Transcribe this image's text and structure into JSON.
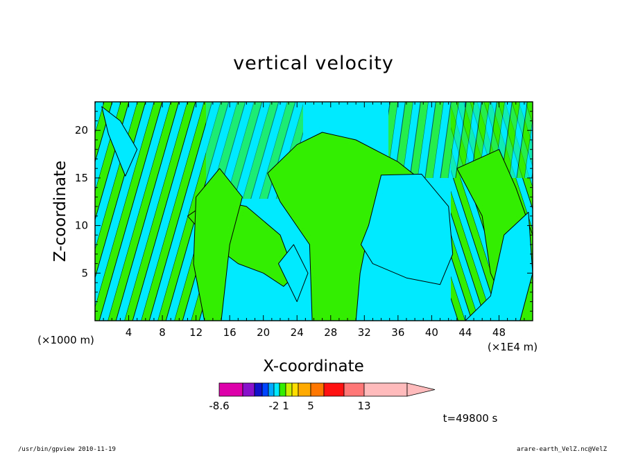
{
  "window": {
    "footer_left": "/usr/bin/gpview   2010-11-19",
    "footer_right": "arare-earth_VelZ.nc@VelZ"
  },
  "colors": {
    "cyan": "#00eaff",
    "green": "#33ee00",
    "frame": "#000000"
  },
  "chart_data": {
    "type": "heatmap",
    "title": "vertical velocity",
    "xlabel": "X-coordinate",
    "ylabel": "Z-coordinate",
    "x_unit_left": "(×1000 m)",
    "x_unit_right": "(×1E4 m)",
    "xlim": [
      0,
      52
    ],
    "ylim": [
      0,
      23
    ],
    "x_ticks": [
      4,
      8,
      12,
      16,
      20,
      24,
      28,
      32,
      36,
      40,
      44,
      48
    ],
    "y_ticks": [
      5,
      10,
      15,
      20
    ],
    "time_label": "t=49800 s",
    "colorbar": {
      "colors": [
        "#dd00aa",
        "#8811cc",
        "#1111cc",
        "#0044ff",
        "#00aaff",
        "#00eaff",
        "#33ee00",
        "#ccee00",
        "#ffdd00",
        "#ffaa00",
        "#ff7700",
        "#ff1111",
        "#ff7777",
        "#ffbbbb"
      ],
      "tick_labels": [
        {
          "label": "-8.6",
          "index": 0
        },
        {
          "label": "-2",
          "index": 5
        },
        {
          "label": "1",
          "index": 7
        },
        {
          "label": "5",
          "index": 10
        },
        {
          "label": "13",
          "index": 13
        }
      ]
    },
    "regions": [
      {
        "value_sign": "negative",
        "color": "cyan",
        "shape": [
          [
            0.8,
            22.5
          ],
          [
            3,
            21
          ],
          [
            5,
            18
          ],
          [
            3.6,
            15.2
          ],
          [
            1.6,
            19.6
          ]
        ]
      },
      {
        "value_sign": "positive",
        "color": "green",
        "shape": [
          [
            25.8,
            0
          ],
          [
            25.5,
            8
          ],
          [
            22,
            12.5
          ],
          [
            20.5,
            15.5
          ],
          [
            24,
            18.5
          ],
          [
            27,
            19.8
          ],
          [
            31,
            19
          ],
          [
            36,
            16.7
          ],
          [
            38,
            15.3
          ],
          [
            36,
            13.4
          ],
          [
            34,
            11.3
          ],
          [
            32.4,
            9
          ],
          [
            31.5,
            5
          ],
          [
            31,
            0
          ]
        ]
      },
      {
        "value_sign": "negative",
        "color": "cyan",
        "shape": [
          [
            32.5,
            10
          ],
          [
            34,
            15.3
          ],
          [
            38.8,
            15.4
          ],
          [
            42,
            12
          ],
          [
            42.5,
            7
          ],
          [
            41,
            3.8
          ],
          [
            37,
            4.5
          ],
          [
            33,
            6
          ],
          [
            31.6,
            8
          ]
        ]
      },
      {
        "value_sign": "positive",
        "color": "green",
        "shape": [
          [
            11,
            11
          ],
          [
            14,
            8
          ],
          [
            17,
            6
          ],
          [
            20,
            5
          ],
          [
            22.4,
            3.6
          ],
          [
            23.8,
            4.8
          ],
          [
            22,
            9
          ],
          [
            18,
            12
          ],
          [
            14,
            12.8
          ]
        ]
      },
      {
        "value_sign": "negative",
        "color": "cyan",
        "shape": [
          [
            24,
            2
          ],
          [
            25.3,
            5
          ],
          [
            23.6,
            8
          ],
          [
            21.8,
            6
          ]
        ]
      },
      {
        "value_sign": "positive",
        "color": "green",
        "shape": [
          [
            43,
            16
          ],
          [
            46,
            11
          ],
          [
            47,
            5
          ],
          [
            49.6,
            0
          ],
          [
            52,
            0
          ],
          [
            52,
            9
          ],
          [
            50,
            14
          ],
          [
            48,
            18
          ]
        ]
      },
      {
        "value_sign": "negative",
        "color": "cyan",
        "shape": [
          [
            44,
            0
          ],
          [
            47,
            2.6
          ],
          [
            48.6,
            9
          ],
          [
            51.5,
            11.4
          ],
          [
            52,
            5
          ],
          [
            50.5,
            0
          ]
        ]
      },
      {
        "value_sign": "positive",
        "color": "green",
        "shape": [
          [
            15,
            0
          ],
          [
            16,
            8
          ],
          [
            17.5,
            13
          ],
          [
            14.8,
            16
          ],
          [
            12,
            13
          ],
          [
            11.7,
            6
          ],
          [
            13,
            0
          ]
        ]
      }
    ]
  }
}
